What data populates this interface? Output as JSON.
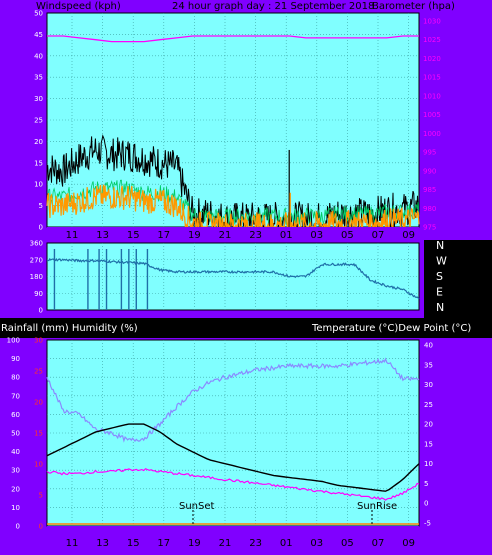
{
  "header": {
    "left": "Windspeed (kph)",
    "center": "24 hour graph day : 21 September 2018",
    "right": "Barometer (hpa)"
  },
  "bottom_header": {
    "left": "Rainfall (mm)  Humidity (%)",
    "right": "Temperature (°C)Dew Point (°C)"
  },
  "x_ticks": [
    "11",
    "13",
    "15",
    "17",
    "19",
    "21",
    "23",
    "01",
    "03",
    "05",
    "07",
    "09"
  ],
  "wind_y_ticks": [
    "0",
    "5",
    "10",
    "15",
    "20",
    "25",
    "30",
    "35",
    "40",
    "45",
    "50"
  ],
  "baro_y_ticks": [
    "975",
    "980",
    "985",
    "990",
    "995",
    "1000",
    "1005",
    "1010",
    "1015",
    "1020",
    "1025",
    "1030"
  ],
  "dir_y_ticks": [
    "0",
    "90",
    "180",
    "270",
    "360"
  ],
  "dir_labels": [
    "N",
    "W",
    "S",
    "E",
    "N"
  ],
  "hum_y_ticks": [
    "0",
    "10",
    "20",
    "30",
    "40",
    "50",
    "60",
    "70",
    "80",
    "90",
    "100"
  ],
  "rain_y_ticks": [
    "0",
    "5",
    "10",
    "15",
    "20",
    "25",
    "30"
  ],
  "temp_y_ticks": [
    "-5",
    "0",
    "5",
    "10",
    "15",
    "20",
    "25",
    "30",
    "35",
    "40"
  ],
  "annotations": {
    "sunset": "SunSet",
    "sunrise": "SunRise"
  },
  "colors": {
    "plot_bg": "#80ffff",
    "frame": "#8000ff",
    "grid": "#3aa0a0",
    "barometer": "#ff00ff",
    "wind_gust": "#000000",
    "wind_avg": "#ff9900",
    "wind_light": "#00cc66",
    "direction": "#1f6fa8",
    "humidity": "#8a8aff",
    "temperature": "#000000",
    "dewpoint": "#ff00ff",
    "rain": "#ff8000",
    "right_axis_text": "#ff00ff"
  },
  "chart_data": [
    {
      "type": "line",
      "title": "24 hour graph day : 21 September 2018",
      "ylabel": "Windspeed (kph)",
      "y2label": "Barometer (hpa)",
      "ylim": [
        0,
        50
      ],
      "y2lim": [
        975,
        1030
      ],
      "x": [
        "10",
        "11",
        "12",
        "13",
        "14",
        "15",
        "16",
        "17",
        "18",
        "19",
        "20",
        "21",
        "22",
        "23",
        "00",
        "01",
        "02",
        "03",
        "04",
        "05",
        "06",
        "07",
        "08",
        "09"
      ],
      "series": [
        {
          "name": "Barometer (hpa)",
          "axis": "right",
          "values": [
            1026,
            1026,
            1025.5,
            1025,
            1024.5,
            1024.5,
            1024.5,
            1025,
            1025.5,
            1026,
            1026,
            1026,
            1026,
            1026,
            1026,
            1026,
            1025.5,
            1025.5,
            1025.5,
            1025.5,
            1025.5,
            1025.5,
            1026,
            1026
          ]
        },
        {
          "name": "Wind gust",
          "values": [
            14,
            13,
            16,
            18,
            17,
            17,
            16,
            15,
            14,
            3,
            3,
            2,
            2,
            2,
            2,
            2,
            2,
            2,
            3,
            3,
            3,
            4,
            4,
            5
          ]
        },
        {
          "name": "Wind average",
          "values": [
            5,
            5,
            6,
            7,
            7,
            7,
            6,
            6,
            5,
            1,
            0.5,
            0.5,
            0.5,
            0.5,
            0.5,
            0.5,
            0.5,
            0.5,
            1,
            1,
            1,
            1.5,
            1.5,
            2
          ]
        }
      ]
    },
    {
      "type": "line",
      "ylabel": "Wind direction",
      "ylim": [
        0,
        360
      ],
      "x": [
        "10",
        "11",
        "12",
        "13",
        "14",
        "15",
        "16",
        "17",
        "18",
        "19",
        "20",
        "21",
        "22",
        "23",
        "00",
        "01",
        "02",
        "03",
        "04",
        "05",
        "06",
        "07",
        "08",
        "09"
      ],
      "series": [
        {
          "name": "Direction",
          "values": [
            270,
            270,
            265,
            265,
            260,
            255,
            250,
            215,
            205,
            205,
            205,
            205,
            205,
            205,
            205,
            180,
            180,
            245,
            245,
            245,
            160,
            130,
            110,
            60
          ]
        }
      ]
    },
    {
      "type": "line",
      "ylabel": "Rainfall (mm)  Humidity (%)",
      "y2label": "Temperature (°C)Dew Point (°C)",
      "ylim": [
        0,
        100
      ],
      "y2lim": [
        -5,
        40
      ],
      "x": [
        "10",
        "11",
        "12",
        "13",
        "14",
        "15",
        "16",
        "17",
        "18",
        "19",
        "20",
        "21",
        "22",
        "23",
        "00",
        "01",
        "02",
        "03",
        "04",
        "05",
        "06",
        "07",
        "08",
        "09"
      ],
      "series": [
        {
          "name": "Humidity",
          "values": [
            80,
            62,
            60,
            52,
            50,
            46,
            47,
            55,
            64,
            72,
            77,
            80,
            82,
            84,
            85,
            86,
            86,
            86,
            86,
            87,
            88,
            89,
            79,
            79
          ]
        },
        {
          "name": "Temperature",
          "values": [
            12,
            14,
            16,
            18,
            19,
            20,
            20,
            18,
            15,
            13,
            11,
            10,
            9,
            8,
            7,
            6.5,
            6,
            5.5,
            4.5,
            4,
            3.5,
            3,
            6,
            10
          ]
        },
        {
          "name": "Dew Point",
          "values": [
            8,
            7.5,
            7.5,
            8,
            8,
            8.5,
            8.5,
            8,
            7.5,
            7,
            6.5,
            6,
            5.5,
            5,
            4.5,
            4,
            3.5,
            3,
            2.5,
            2,
            1.5,
            1,
            2.5,
            5
          ]
        },
        {
          "name": "Rainfall",
          "values": [
            0,
            0,
            0,
            0,
            0,
            0,
            0,
            0,
            0,
            0,
            0,
            0,
            0,
            0,
            0,
            0,
            0,
            0,
            0,
            0,
            0,
            0,
            0,
            0
          ]
        }
      ]
    }
  ]
}
